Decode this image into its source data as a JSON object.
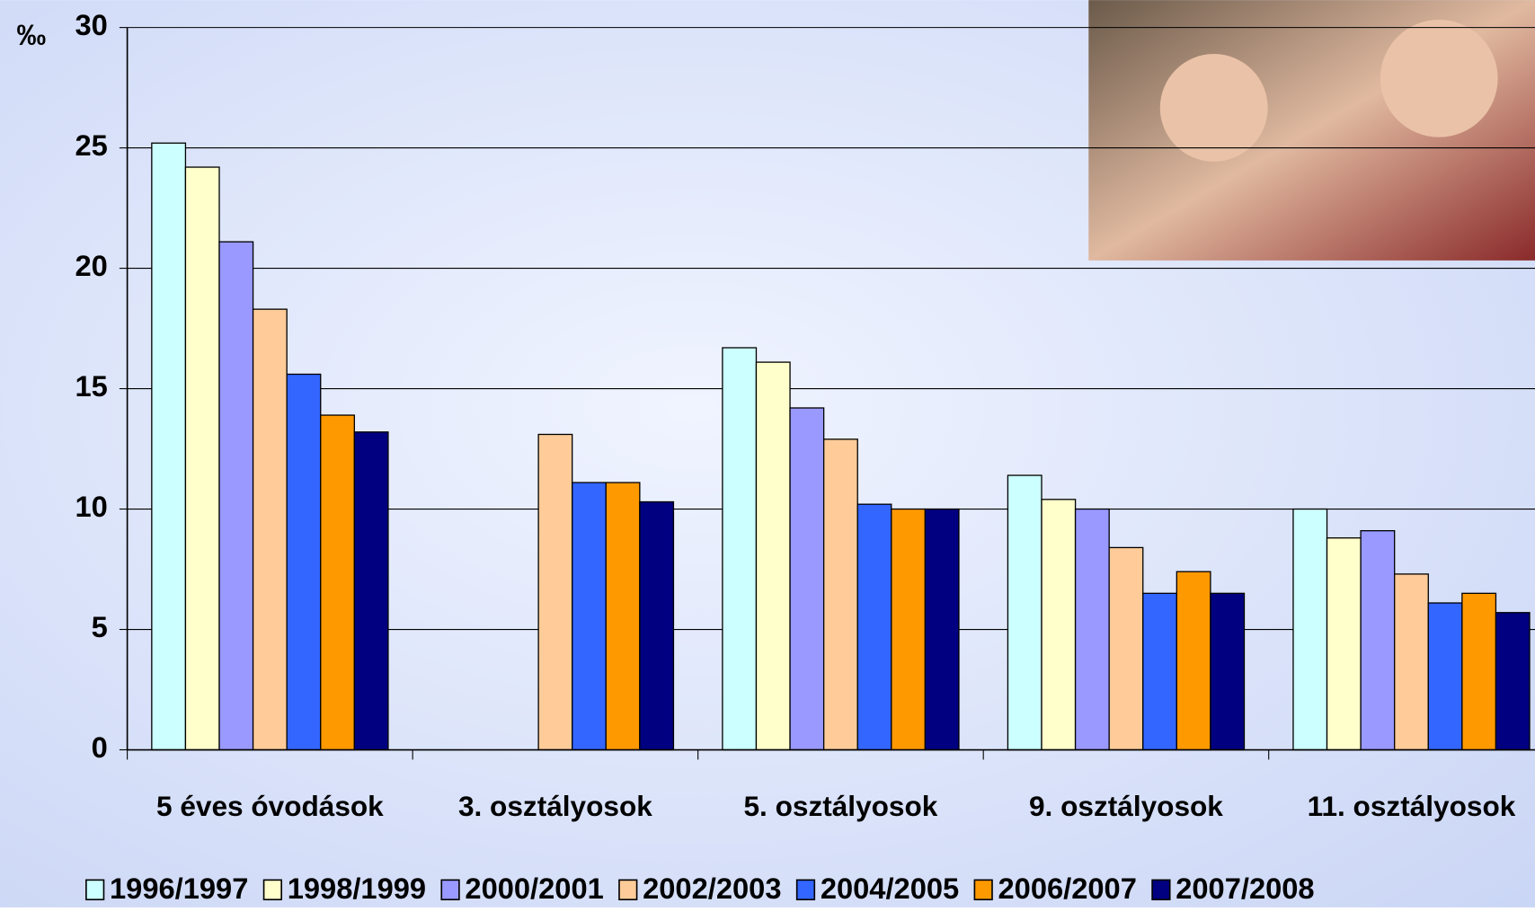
{
  "chart_data": {
    "type": "bar",
    "ylabel": "‰",
    "categories": [
      "5 éves óvodások",
      "3. osztályosok",
      "5. osztályosok",
      "9. osztályosok",
      "11. osztályosok"
    ],
    "series": [
      {
        "name": "1996/1997",
        "color": "#ccffff",
        "values": [
          25.2,
          null,
          16.7,
          11.4,
          10.0
        ]
      },
      {
        "name": "1998/1999",
        "color": "#ffffcc",
        "values": [
          24.2,
          null,
          16.1,
          10.4,
          8.8
        ]
      },
      {
        "name": "2000/2001",
        "color": "#9999ff",
        "values": [
          21.1,
          null,
          14.2,
          10.0,
          9.1
        ]
      },
      {
        "name": "2002/2003",
        "color": "#ffcc99",
        "values": [
          18.3,
          13.1,
          12.9,
          8.4,
          7.3
        ]
      },
      {
        "name": "2004/2005",
        "color": "#3366ff",
        "values": [
          15.6,
          11.1,
          10.2,
          6.5,
          6.1
        ]
      },
      {
        "name": "2006/2007",
        "color": "#ff9900",
        "values": [
          13.9,
          11.1,
          10.0,
          7.4,
          6.5
        ]
      },
      {
        "name": "2007/2008",
        "color": "#000080",
        "values": [
          13.2,
          10.3,
          10.0,
          6.5,
          5.7
        ]
      }
    ],
    "ylim": [
      0,
      30
    ],
    "yticks": [
      0,
      5,
      10,
      15,
      20,
      25,
      30
    ],
    "grid": true
  }
}
